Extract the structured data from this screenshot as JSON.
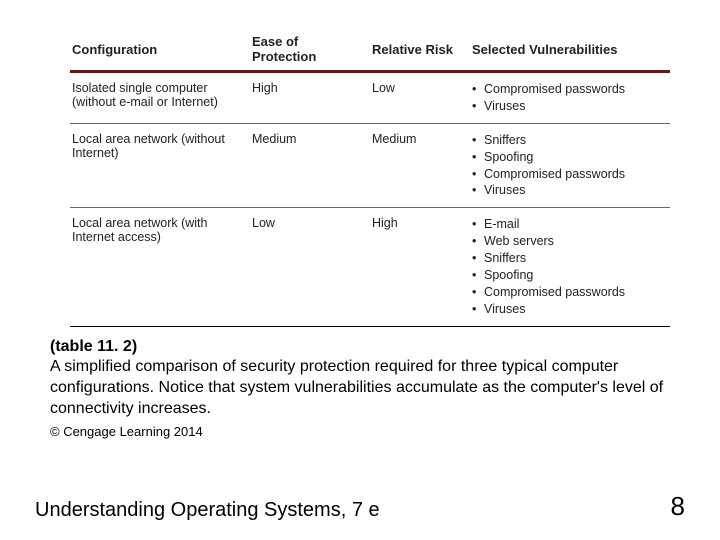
{
  "table": {
    "headers": {
      "config": "Configuration",
      "ease": "Ease of Protection",
      "risk": "Relative Risk",
      "vuln": "Selected Vulnerabilities"
    },
    "rows": [
      {
        "config": "Isolated single computer (without e-mail or Internet)",
        "ease": "High",
        "risk": "Low",
        "vuln": [
          "Compromised passwords",
          "Viruses"
        ]
      },
      {
        "config": "Local area network (without Internet)",
        "ease": "Medium",
        "risk": "Medium",
        "vuln": [
          "Sniffers",
          "Spoofing",
          "Compromised passwords",
          "Viruses"
        ]
      },
      {
        "config": "Local area network (with Internet access)",
        "ease": "Low",
        "risk": "High",
        "vuln": [
          "E-mail",
          "Web servers",
          "Sniffers",
          "Spoofing",
          "Compromised passwords",
          "Viruses"
        ]
      }
    ],
    "header_rule_color": "#5a1b1b",
    "row_border_color": "#666666"
  },
  "caption": {
    "label": "(table 11. 2)",
    "text": "A simplified comparison of security protection required for three typical computer configurations. Notice that system vulnerabilities accumulate as the computer's level of connectivity increases."
  },
  "copyright": "© Cengage Learning 2014",
  "footer": {
    "book": "Understanding Operating Systems, 7 e",
    "page": "8"
  }
}
